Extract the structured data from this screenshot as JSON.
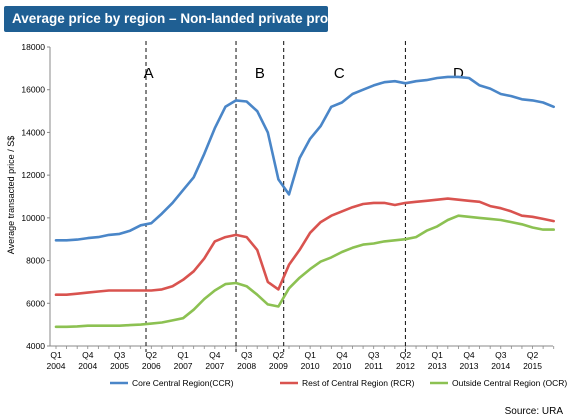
{
  "chart_data": {
    "type": "line",
    "title": "Average price by region – Non-landed private property",
    "ylabel": "Average transacted price / S$",
    "ylim": [
      4000,
      18000
    ],
    "y_ticks": [
      "4000",
      "6000",
      "8000",
      "10000",
      "12000",
      "14000",
      "16000",
      "18000"
    ],
    "x_tick_labels": [
      [
        "Q1",
        "2004"
      ],
      [
        "Q4",
        "2004"
      ],
      [
        "Q3",
        "2005"
      ],
      [
        "Q2",
        "2006"
      ],
      [
        "Q1",
        "2007"
      ],
      [
        "Q4",
        "2007"
      ],
      [
        "Q3",
        "2008"
      ],
      [
        "Q2",
        "2009"
      ],
      [
        "Q1",
        "2010"
      ],
      [
        "Q4",
        "2010"
      ],
      [
        "Q3",
        "2011"
      ],
      [
        "Q2",
        "2012"
      ],
      [
        "Q1",
        "2013"
      ],
      [
        "Q4",
        "2013"
      ],
      [
        "Q3",
        "2014"
      ],
      [
        "Q2",
        "2015"
      ]
    ],
    "x_tick_quarter_index": [
      0,
      3,
      6,
      9,
      12,
      15,
      18,
      21,
      24,
      27,
      30,
      33,
      36,
      39,
      42,
      45
    ],
    "quarter_count": 48,
    "region_labels": [
      "A",
      "B",
      "C",
      "D"
    ],
    "region_dividers_quarter_index": [
      8.5,
      17,
      21.5,
      33
    ],
    "series": [
      {
        "name": "Core Central Region(CCR)",
        "color": "#4a86c8",
        "values": [
          8950,
          8950,
          8980,
          9050,
          9100,
          9200,
          9250,
          9400,
          9650,
          9750,
          10200,
          10700,
          11300,
          11900,
          13000,
          14200,
          15200,
          15500,
          15450,
          15000,
          14000,
          11800,
          11100,
          12800,
          13700,
          14300,
          15200,
          15400,
          15800,
          16000,
          16200,
          16350,
          16400,
          16300,
          16400,
          16450,
          16550,
          16600,
          16600,
          16550,
          16200,
          16050,
          15800,
          15700,
          15550,
          15500,
          15400,
          15200
        ]
      },
      {
        "name": "Rest of Central Region (RCR)",
        "color": "#d9534f",
        "values": [
          6400,
          6400,
          6450,
          6500,
          6550,
          6600,
          6600,
          6600,
          6600,
          6600,
          6650,
          6800,
          7100,
          7500,
          8100,
          8900,
          9100,
          9200,
          9100,
          8500,
          7000,
          6650,
          7800,
          8500,
          9300,
          9800,
          10100,
          10300,
          10500,
          10650,
          10700,
          10700,
          10600,
          10700,
          10750,
          10800,
          10850,
          10900,
          10850,
          10800,
          10750,
          10550,
          10450,
          10300,
          10100,
          10050,
          9950,
          9850
        ]
      },
      {
        "name": "Outside Central Region (OCR)",
        "color": "#8cc152",
        "values": [
          4900,
          4900,
          4920,
          4950,
          4950,
          4950,
          4950,
          4980,
          5000,
          5050,
          5100,
          5200,
          5300,
          5700,
          6200,
          6600,
          6900,
          6950,
          6800,
          6400,
          5950,
          5850,
          6700,
          7200,
          7600,
          7950,
          8150,
          8400,
          8600,
          8750,
          8800,
          8900,
          8950,
          9000,
          9100,
          9400,
          9600,
          9900,
          10100,
          10050,
          10000,
          9950,
          9900,
          9800,
          9700,
          9550,
          9450,
          9450
        ]
      }
    ],
    "legend_position": "bottom",
    "source": "Source: URA"
  }
}
